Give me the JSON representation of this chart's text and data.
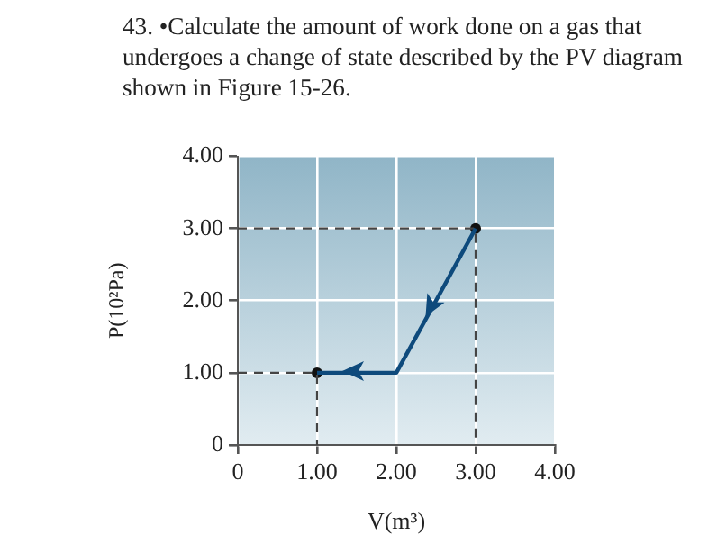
{
  "chart_data": {
    "type": "line",
    "title": "43. •Calculate the amount of work done on a gas that undergoes a change of state described by the PV diagram shown in Figure 15-26.",
    "xlabel": "V(m³)",
    "ylabel": "P(10²Pa)",
    "xlim": [
      0,
      4
    ],
    "ylim": [
      0,
      4
    ],
    "xticks": [
      0,
      {
        "value": 1,
        "label": "1.00"
      },
      {
        "value": 2,
        "label": "2.00"
      },
      {
        "value": 3,
        "label": "3.00"
      },
      {
        "value": 4,
        "label": "4.00"
      }
    ],
    "yticks": [
      0,
      {
        "value": 1,
        "label": "1.00"
      },
      {
        "value": 2,
        "label": "2.00"
      },
      {
        "value": 3,
        "label": "3.00"
      },
      {
        "value": 4,
        "label": "4.00"
      }
    ],
    "grid": true,
    "series": [
      {
        "x": [
          3,
          2,
          1
        ],
        "values": [
          3,
          1,
          1
        ],
        "color": "#0e4a7c",
        "line_style": "solid",
        "marker": "none"
      },
      {
        "x": [
          0,
          3,
          3
        ],
        "values": [
          3,
          3,
          0
        ],
        "color": "#444444",
        "line_style": "dashed",
        "marker": "none"
      },
      {
        "x": [
          0,
          1,
          1
        ],
        "values": [
          1,
          1,
          0
        ],
        "color": "#444444",
        "line_style": "dashed",
        "marker": "none"
      },
      {
        "type": "scatter",
        "x": [
          3,
          1
        ],
        "values": [
          3,
          1
        ],
        "color": "#111111",
        "marker": "circle"
      }
    ]
  }
}
